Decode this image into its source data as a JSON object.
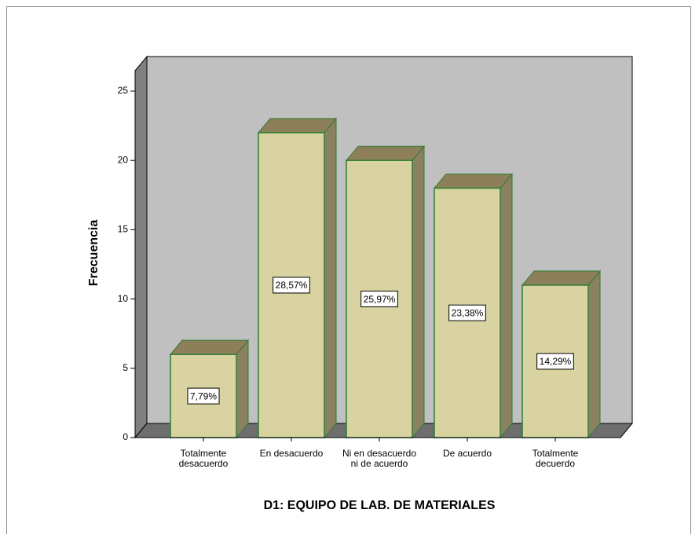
{
  "chart_data": {
    "type": "bar3d",
    "title": "D1: EQUIPO DE LAB. DE MATERIALES",
    "y_label": "Frecuencia",
    "categories": [
      "Totalmente desacuerdo",
      "En desacuerdo",
      "Ni en desacuerdo ni de acuerdo",
      "De acuerdo",
      "Totalmente decuerdo"
    ],
    "values": [
      6,
      22,
      20,
      18,
      11
    ],
    "percentages": [
      7.79,
      28.57,
      25.97,
      23.38,
      14.29
    ],
    "percentage_labels": [
      "7,79%",
      "28,57%",
      "25,97%",
      "23,38%",
      "14,29%"
    ],
    "color": "#d8d3a0",
    "ylim": [
      0,
      25
    ],
    "yticks": [
      0,
      5,
      10,
      15,
      20,
      25
    ]
  }
}
